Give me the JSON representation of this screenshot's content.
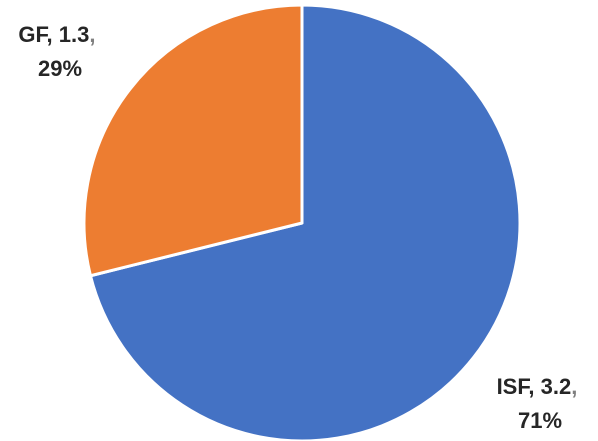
{
  "chart_data": {
    "type": "pie",
    "categories": [
      "ISF",
      "GF"
    ],
    "values": [
      3.2,
      1.3
    ],
    "percentages": [
      "71%",
      "29%"
    ],
    "colors": [
      "#4472C4",
      "#ED7D31"
    ],
    "data_labels": [
      {
        "category": "ISF",
        "value": "3.2",
        "separator": ",",
        "percent": "71%"
      },
      {
        "category": "GF",
        "value": "1.3",
        "separator": ",",
        "percent": "29%"
      }
    ],
    "start_angle_deg": 0,
    "direction": "clockwise",
    "legend": "none",
    "title": ""
  }
}
